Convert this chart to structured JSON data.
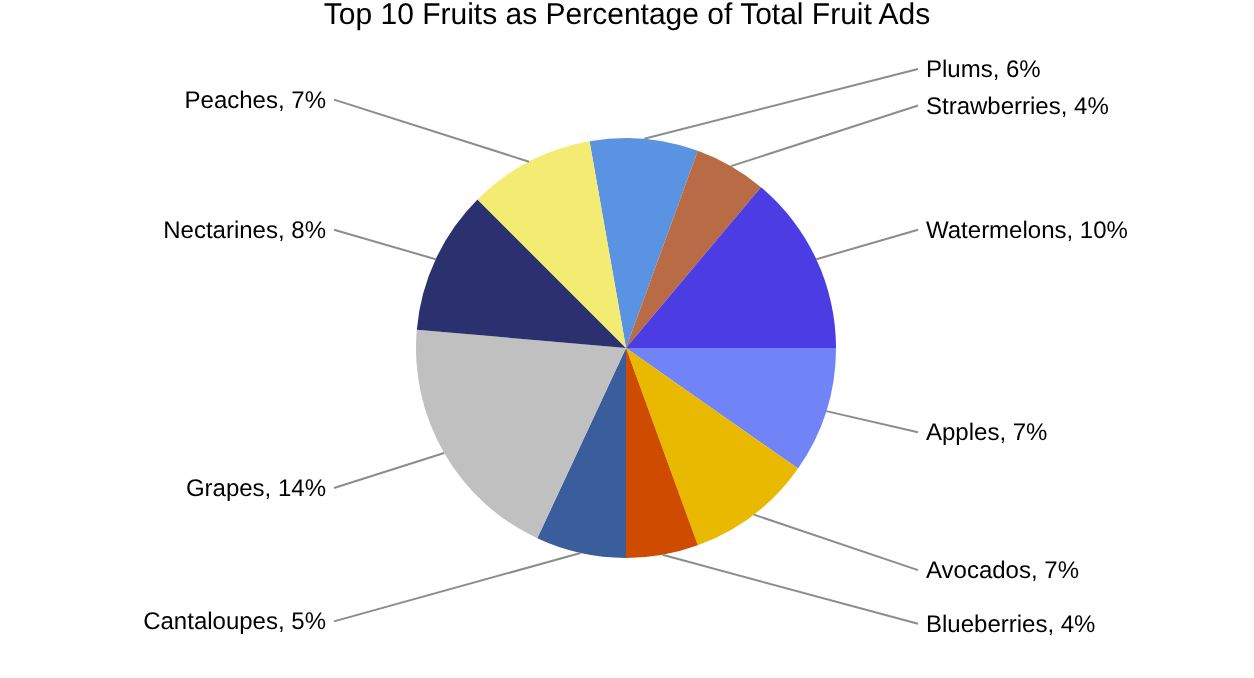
{
  "chart_data": {
    "type": "pie",
    "title": "Top 10 Fruits as Percentage of Total Fruit Ads",
    "categories": [
      "Plums",
      "Strawberries",
      "Watermelons",
      "Apples",
      "Avocados",
      "Blueberries",
      "Cantaloupes",
      "Grapes",
      "Nectarines",
      "Peaches"
    ],
    "values": [
      6,
      4,
      10,
      7,
      7,
      4,
      5,
      14,
      8,
      7
    ],
    "value_labels": [
      "6%",
      "4%",
      "10%",
      "7%",
      "7%",
      "4%",
      "5%",
      "14%",
      "8%",
      "7%"
    ],
    "colors": [
      "#5b93e3",
      "#b86b45",
      "#4b3ce3",
      "#7083f7",
      "#e9b900",
      "#cf4b00",
      "#3a5d9b",
      "#c0c0c0",
      "#2b316e",
      "#f3eb72"
    ],
    "legend": false
  }
}
